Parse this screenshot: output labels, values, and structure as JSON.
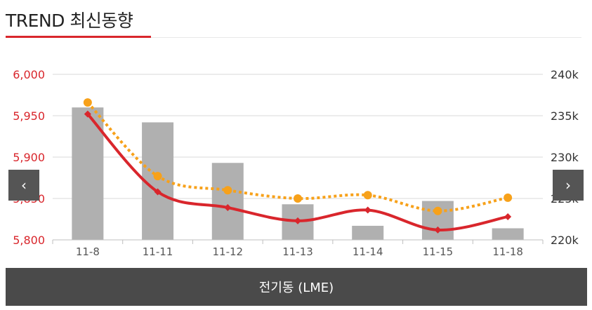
{
  "header": {
    "title": "TREND 최신동향"
  },
  "nav": {
    "prev_icon": "chevron-left-icon",
    "next_icon": "chevron-right-icon",
    "prev_glyph": "‹",
    "next_glyph": "›"
  },
  "footer": {
    "label": "전기동 (LME)"
  },
  "colors": {
    "accent": "#d9262c",
    "secondary": "#f7a11a",
    "bars": "#b0b0b0",
    "nav": "#555555",
    "footer": "#4a4a4a"
  },
  "chart_data": {
    "type": "bar",
    "categories": [
      "11-8",
      "11-11",
      "11-12",
      "11-13",
      "11-14",
      "11-15",
      "11-18"
    ],
    "series": [
      {
        "kind": "bar",
        "axis": "right",
        "values": [
          236.0,
          234.2,
          229.3,
          224.3,
          221.7,
          224.7,
          221.4
        ]
      },
      {
        "kind": "line",
        "axis": "left",
        "style": "solid",
        "marker": "diamond",
        "color": "#d9262c",
        "values": [
          5952,
          5858,
          5839,
          5823,
          5836,
          5812,
          5828
        ]
      },
      {
        "kind": "line",
        "axis": "right",
        "style": "dotted",
        "marker": "circle",
        "color": "#f7a11a",
        "values": [
          236.6,
          227.7,
          226.0,
          225.0,
          225.4,
          223.5,
          225.1
        ]
      }
    ],
    "left_axis": {
      "ylim": [
        5800,
        6000
      ],
      "ticks": [
        "5,800",
        "5,850",
        "5,900",
        "5,950",
        "6,000"
      ],
      "tick_values": [
        5800,
        5850,
        5900,
        5950,
        6000
      ]
    },
    "right_axis": {
      "ylim": [
        220,
        240
      ],
      "ticks": [
        "220k",
        "225k",
        "230k",
        "235k",
        "240k"
      ],
      "tick_values": [
        220,
        225,
        230,
        235,
        240
      ]
    },
    "grid": true,
    "legend": "none"
  }
}
